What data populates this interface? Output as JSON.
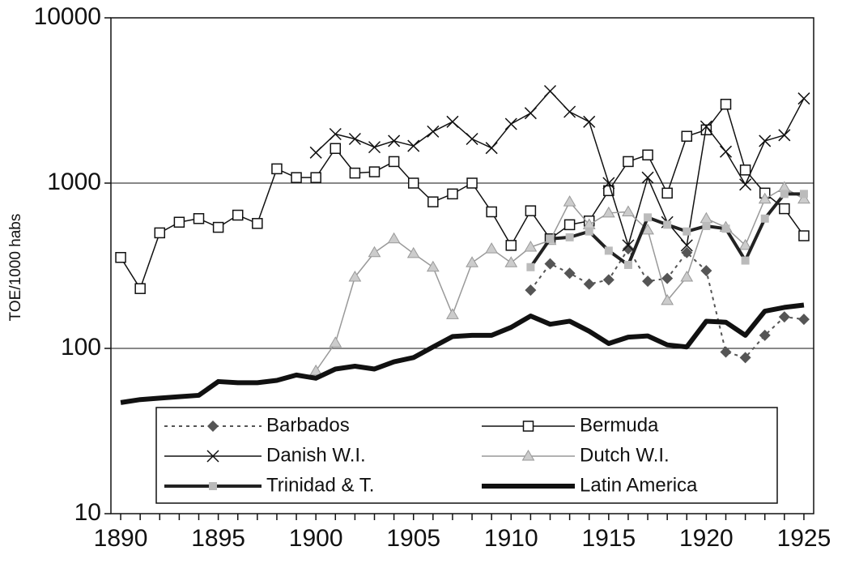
{
  "chart_data": {
    "type": "line",
    "y_label": "TOE/1000 habs",
    "log_y": true,
    "grid": true,
    "x": [
      1890,
      1891,
      1892,
      1893,
      1894,
      1895,
      1896,
      1897,
      1898,
      1899,
      1900,
      1901,
      1902,
      1903,
      1904,
      1905,
      1906,
      1907,
      1908,
      1909,
      1910,
      1911,
      1912,
      1913,
      1914,
      1915,
      1916,
      1917,
      1918,
      1919,
      1920,
      1921,
      1922,
      1923,
      1924,
      1925
    ],
    "xlim": [
      1889.5,
      1925.5
    ],
    "xticks": [
      1890,
      1895,
      1900,
      1905,
      1910,
      1915,
      1920,
      1925
    ],
    "ylim": [
      10,
      10000
    ],
    "yticks": [
      10,
      100,
      1000,
      10000
    ],
    "series": [
      {
        "name": "Barbados",
        "color": "#555555",
        "marker": "diamond",
        "width": 2,
        "dash": "4 5",
        "values": [
          null,
          null,
          null,
          null,
          null,
          null,
          null,
          null,
          null,
          null,
          null,
          null,
          null,
          null,
          null,
          null,
          null,
          null,
          null,
          null,
          null,
          225,
          325,
          285,
          245,
          260,
          400,
          255,
          265,
          380,
          295,
          95,
          88,
          120,
          155,
          150
        ]
      },
      {
        "name": "Bermuda",
        "color": "#111111",
        "marker": "square",
        "width": 1.5,
        "values": [
          355,
          230,
          500,
          580,
          610,
          540,
          640,
          570,
          1220,
          1080,
          1080,
          1620,
          1150,
          1170,
          1350,
          1000,
          770,
          860,
          1000,
          670,
          420,
          680,
          460,
          560,
          590,
          900,
          1350,
          1480,
          870,
          1920,
          2100,
          3000,
          1200,
          870,
          700,
          480
        ]
      },
      {
        "name": "Danish W.I.",
        "color": "#111111",
        "marker": "x",
        "width": 1.5,
        "values": [
          null,
          null,
          null,
          null,
          null,
          null,
          null,
          null,
          null,
          null,
          1530,
          1980,
          1850,
          1650,
          1800,
          1680,
          2050,
          2350,
          1850,
          1630,
          2280,
          2650,
          3600,
          2700,
          2350,
          1000,
          420,
          1080,
          580,
          420,
          2200,
          1550,
          980,
          1800,
          1950,
          3250
        ]
      },
      {
        "name": "Dutch W.I.",
        "color": "#999999",
        "marker": "triangle",
        "width": 1.5,
        "values": [
          null,
          null,
          null,
          null,
          null,
          null,
          null,
          null,
          null,
          null,
          73,
          108,
          270,
          380,
          460,
          375,
          310,
          160,
          330,
          400,
          330,
          410,
          450,
          770,
          560,
          660,
          670,
          520,
          195,
          270,
          610,
          540,
          420,
          800,
          940,
          800
        ]
      },
      {
        "name": "Trinidad & T.",
        "color": "#222222",
        "marker": "lightsquare",
        "width": 4,
        "values": [
          null,
          null,
          null,
          null,
          null,
          null,
          null,
          null,
          null,
          null,
          null,
          null,
          null,
          null,
          null,
          null,
          null,
          null,
          null,
          null,
          null,
          310,
          460,
          470,
          510,
          390,
          320,
          620,
          560,
          510,
          550,
          530,
          340,
          610,
          860,
          860
        ]
      },
      {
        "name": "Latin America",
        "color": "#111111",
        "marker": "none",
        "width": 6,
        "values": [
          47,
          49,
          50,
          51,
          52,
          63,
          62,
          62,
          64,
          69,
          66,
          75,
          78,
          75,
          83,
          88,
          102,
          118,
          120,
          120,
          134,
          157,
          140,
          146,
          127,
          107,
          117,
          119,
          105,
          102,
          146,
          144,
          120,
          168,
          177,
          183
        ]
      }
    ]
  }
}
